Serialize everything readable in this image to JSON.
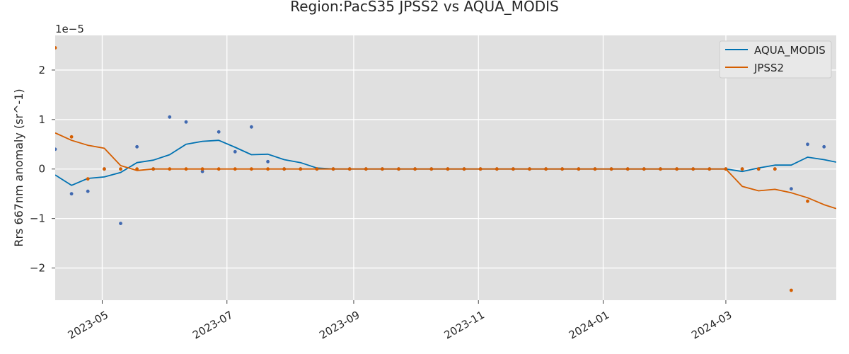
{
  "chart_data": {
    "type": "line",
    "title": "Region:PacS35 JPSS2 vs AQUA_MODIS",
    "xlabel": "",
    "ylabel": "Rrs 667nm anomaly (sr^-1)",
    "offset_label": "1e−5",
    "xlim": [
      "2023-04-08",
      "2024-04-24"
    ],
    "ylim": [
      -2.65,
      2.7
    ],
    "y_scale_factor": 1e-05,
    "xticks": [
      "2023-05-01",
      "2023-07-01",
      "2023-09-01",
      "2023-11-01",
      "2024-01-01",
      "2024-03-01"
    ],
    "xtick_labels": [
      "2023-05",
      "2023-07",
      "2023-09",
      "2023-11",
      "2024-01",
      "2024-03"
    ],
    "yticks": [
      -2,
      -1,
      0,
      1,
      2
    ],
    "ytick_labels": [
      "−2",
      "−1",
      "0",
      "1",
      "2"
    ],
    "grid": true,
    "legend_position": "top-right",
    "x": [
      "2023-04-08",
      "2023-04-16",
      "2023-04-24",
      "2023-05-02",
      "2023-05-10",
      "2023-05-18",
      "2023-05-26",
      "2023-06-03",
      "2023-06-11",
      "2023-06-19",
      "2023-06-27",
      "2023-07-05",
      "2023-07-13",
      "2023-07-21",
      "2023-07-29",
      "2023-08-06",
      "2023-08-14",
      "2023-08-22",
      "2023-08-30",
      "2023-09-07",
      "2023-09-15",
      "2023-09-23",
      "2023-10-01",
      "2023-10-09",
      "2023-10-17",
      "2023-10-25",
      "2023-11-02",
      "2023-11-10",
      "2023-11-18",
      "2023-11-26",
      "2023-12-04",
      "2023-12-12",
      "2023-12-20",
      "2023-12-28",
      "2024-01-05",
      "2024-01-13",
      "2024-01-21",
      "2024-01-29",
      "2024-02-06",
      "2024-02-14",
      "2024-02-22",
      "2024-03-01",
      "2024-03-09",
      "2024-03-17",
      "2024-03-25",
      "2024-04-02",
      "2024-04-10",
      "2024-04-18",
      "2024-04-24"
    ],
    "series": [
      {
        "name": "AQUA_MODIS",
        "color": "#0072b2",
        "line": [
          -0.12,
          -0.33,
          -0.19,
          -0.16,
          -0.07,
          0.13,
          0.18,
          0.29,
          0.5,
          0.56,
          0.58,
          0.44,
          0.29,
          0.3,
          0.19,
          0.13,
          0.02,
          0.0,
          0.0,
          0.0,
          0.0,
          0.0,
          0.0,
          0.0,
          0.0,
          0.0,
          0.0,
          0.0,
          0.0,
          0.0,
          0.0,
          0.0,
          0.0,
          0.0,
          0.0,
          0.0,
          0.0,
          0.0,
          0.0,
          0.0,
          0.0,
          0.0,
          -0.05,
          0.02,
          0.08,
          0.08,
          0.24,
          0.19,
          0.14
        ],
        "points": [
          0.4,
          -0.5,
          -0.45,
          0.0,
          -1.1,
          0.45,
          0.0,
          1.05,
          0.95,
          -0.05,
          0.75,
          0.35,
          0.85,
          0.15,
          0.0,
          0.0,
          0.0,
          0.0,
          0.0,
          0.0,
          0.0,
          0.0,
          0.0,
          0.0,
          0.0,
          0.0,
          0.0,
          0.0,
          0.0,
          0.0,
          0.0,
          0.0,
          0.0,
          0.0,
          0.0,
          0.0,
          0.0,
          0.0,
          0.0,
          0.0,
          0.0,
          0.0,
          0.0,
          0.0,
          0.0,
          -0.4,
          0.5,
          0.45,
          null
        ]
      },
      {
        "name": "JPSS2",
        "color": "#d55e00",
        "line": [
          0.73,
          0.58,
          0.48,
          0.42,
          0.07,
          -0.03,
          0.0,
          0.0,
          0.0,
          0.0,
          0.0,
          0.0,
          0.0,
          0.0,
          0.0,
          0.0,
          0.0,
          0.0,
          0.0,
          0.0,
          0.0,
          0.0,
          0.0,
          0.0,
          0.0,
          0.0,
          0.0,
          0.0,
          0.0,
          0.0,
          0.0,
          0.0,
          0.0,
          0.0,
          0.0,
          0.0,
          0.0,
          0.0,
          0.0,
          0.0,
          0.0,
          0.0,
          -0.35,
          -0.44,
          -0.41,
          -0.48,
          -0.58,
          -0.72,
          -0.8
        ],
        "points": [
          2.45,
          0.65,
          -0.2,
          0.0,
          0.0,
          0.0,
          0.0,
          0.0,
          0.0,
          0.0,
          0.0,
          0.0,
          0.0,
          0.0,
          0.0,
          0.0,
          0.0,
          0.0,
          0.0,
          0.0,
          0.0,
          0.0,
          0.0,
          0.0,
          0.0,
          0.0,
          0.0,
          0.0,
          0.0,
          0.0,
          0.0,
          0.0,
          0.0,
          0.0,
          0.0,
          0.0,
          0.0,
          0.0,
          0.0,
          0.0,
          0.0,
          0.0,
          0.0,
          0.0,
          0.0,
          -2.45,
          -0.65,
          null,
          null
        ]
      }
    ]
  }
}
